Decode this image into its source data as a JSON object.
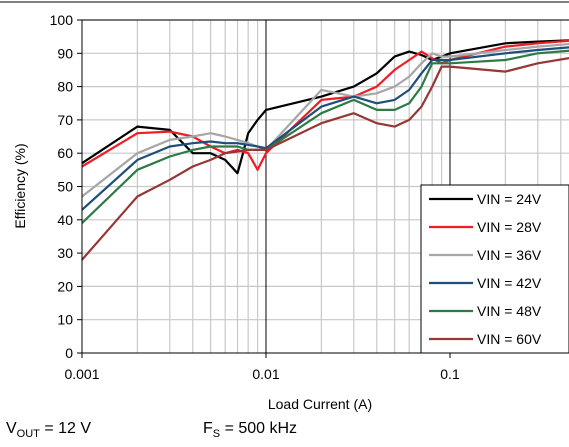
{
  "footer": {
    "vout": {
      "main": "V",
      "sub": "OUT",
      "rest": " = 12 V"
    },
    "fs": {
      "main": "F",
      "sub": "S",
      "rest": " = 500 kHz"
    }
  },
  "chart_data": {
    "type": "line",
    "xscale": "log",
    "xlabel": "Load Current (A)",
    "ylabel": "Efficiency (%)",
    "xlim": [
      0.001,
      0.5
    ],
    "ylim": [
      0,
      100
    ],
    "xticks": [
      "0.001",
      "0.01",
      "0.1"
    ],
    "yticks": [
      "0",
      "10",
      "20",
      "30",
      "40",
      "50",
      "60",
      "70",
      "80",
      "90",
      "100"
    ],
    "grid": true,
    "legend_position": "bottom-right",
    "series": [
      {
        "name": "VIN = 24V",
        "color": "#000000",
        "x": [
          0.001,
          0.002,
          0.003,
          0.004,
          0.005,
          0.006,
          0.007,
          0.0075,
          0.008,
          0.009,
          0.01,
          0.02,
          0.03,
          0.04,
          0.05,
          0.06,
          0.07,
          0.08,
          0.09,
          0.1,
          0.2,
          0.3,
          0.5
        ],
        "y": [
          57,
          68,
          67,
          60,
          60,
          58,
          54,
          60,
          66,
          70,
          73,
          77,
          80,
          84,
          89,
          90.5,
          89.5,
          88,
          89,
          90,
          93,
          93.5,
          94
        ]
      },
      {
        "name": "VIN = 28V",
        "color": "#ee1c25",
        "x": [
          0.001,
          0.002,
          0.003,
          0.004,
          0.005,
          0.006,
          0.007,
          0.008,
          0.009,
          0.01,
          0.02,
          0.03,
          0.04,
          0.05,
          0.06,
          0.07,
          0.08,
          0.09,
          0.1,
          0.2,
          0.3,
          0.5
        ],
        "y": [
          56,
          66,
          66.5,
          65,
          62,
          60,
          61,
          60,
          55,
          60,
          76,
          77,
          80,
          85,
          88,
          90.5,
          88.5,
          87,
          88,
          92,
          93,
          94
        ]
      },
      {
        "name": "VIN = 36V",
        "color": "#a6a6a6",
        "x": [
          0.001,
          0.002,
          0.003,
          0.004,
          0.005,
          0.006,
          0.007,
          0.008,
          0.009,
          0.01,
          0.02,
          0.03,
          0.04,
          0.05,
          0.06,
          0.07,
          0.08,
          0.09,
          0.1,
          0.2,
          0.3,
          0.5
        ],
        "y": [
          47,
          60,
          64,
          65,
          66,
          65,
          64,
          63,
          62,
          61,
          79,
          77,
          78,
          80,
          83,
          87,
          90,
          89,
          89,
          91,
          92,
          93
        ]
      },
      {
        "name": "VIN = 42V",
        "color": "#1f4e79",
        "x": [
          0.001,
          0.002,
          0.003,
          0.004,
          0.005,
          0.006,
          0.007,
          0.008,
          0.009,
          0.01,
          0.02,
          0.03,
          0.04,
          0.05,
          0.06,
          0.07,
          0.08,
          0.09,
          0.1,
          0.2,
          0.3,
          0.5
        ],
        "y": [
          43,
          58,
          62,
          63,
          63.5,
          63,
          63,
          62.5,
          62,
          61.5,
          74,
          77,
          75,
          76,
          79,
          84,
          88,
          88,
          88,
          90,
          91,
          92
        ]
      },
      {
        "name": "VIN = 48V",
        "color": "#2e7a46",
        "x": [
          0.001,
          0.002,
          0.003,
          0.004,
          0.005,
          0.006,
          0.007,
          0.008,
          0.009,
          0.01,
          0.02,
          0.03,
          0.04,
          0.05,
          0.06,
          0.07,
          0.08,
          0.09,
          0.1,
          0.2,
          0.3,
          0.5
        ],
        "y": [
          39,
          55,
          59,
          61,
          62,
          62,
          62,
          61,
          61,
          61,
          72,
          76,
          73,
          73,
          75,
          80,
          87,
          87,
          87,
          88,
          90,
          91
        ]
      },
      {
        "name": "VIN = 60V",
        "color": "#953735",
        "x": [
          0.001,
          0.002,
          0.003,
          0.004,
          0.005,
          0.006,
          0.007,
          0.008,
          0.009,
          0.01,
          0.02,
          0.03,
          0.04,
          0.05,
          0.06,
          0.07,
          0.08,
          0.09,
          0.1,
          0.2,
          0.3,
          0.5
        ],
        "y": [
          28,
          47,
          52,
          56,
          58,
          60,
          60.5,
          61,
          61,
          61,
          69,
          72,
          69,
          68,
          70,
          74,
          80,
          86,
          86,
          84.5,
          87,
          89
        ]
      }
    ]
  }
}
